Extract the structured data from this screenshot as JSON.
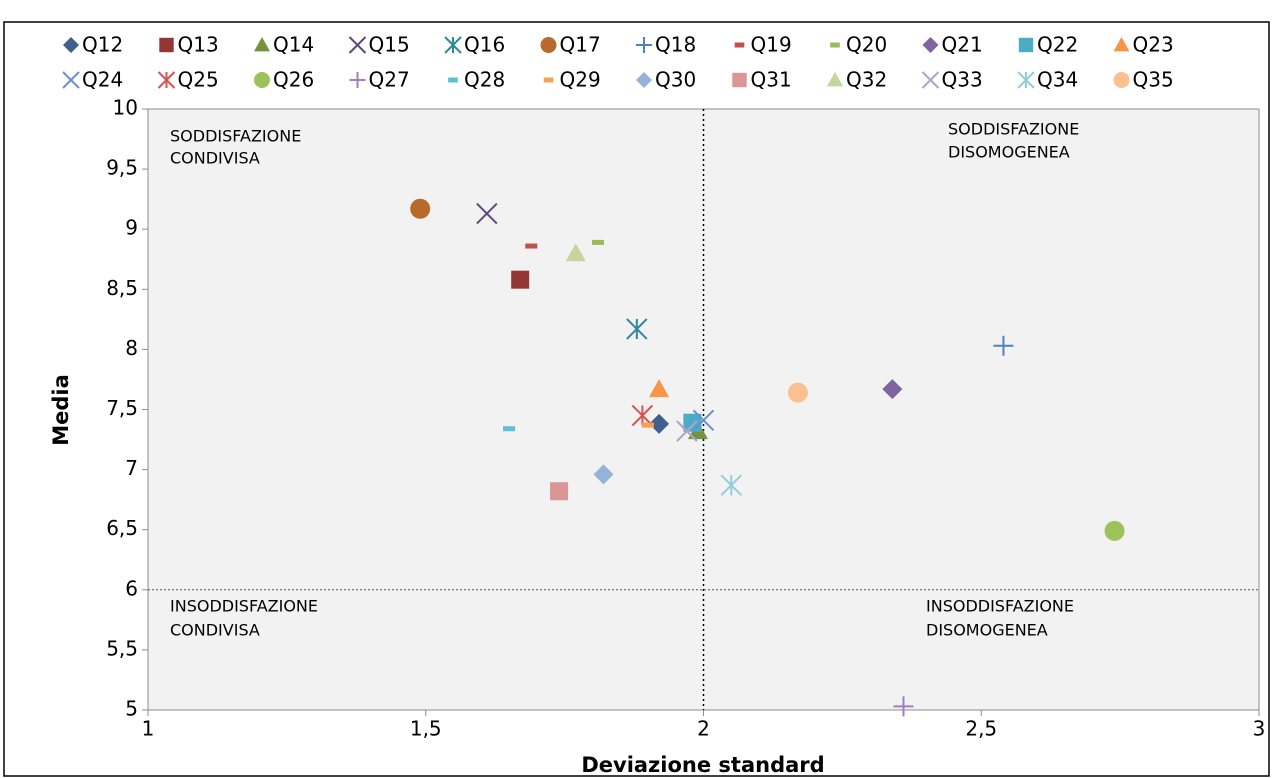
{
  "chart_data": {
    "type": "scatter",
    "x_label": "Deviazione standard",
    "y_label": "Media",
    "xlim": [
      1,
      3
    ],
    "ylim": [
      5,
      10
    ],
    "xticks": [
      1,
      {
        "value": 1.5,
        "label": "1,5"
      },
      2,
      {
        "value": 2.5,
        "label": "2,5"
      },
      3
    ],
    "yticks": [
      5,
      {
        "value": 5.5,
        "label": "5,5"
      },
      6,
      {
        "value": 6.5,
        "label": "6,5"
      },
      7,
      {
        "value": 7.5,
        "label": "7,5"
      },
      8,
      {
        "value": 8.5,
        "label": "8,5"
      },
      9,
      {
        "value": 9.5,
        "label": "9,5"
      },
      10
    ],
    "reference_lines": {
      "x": 2,
      "y": 6
    },
    "annotations": [
      {
        "lines": [
          "SODDISFAZIONE",
          "CONDIVISA"
        ]
      },
      {
        "lines": [
          "SODDISFAZIONE",
          "DISOMOGENEA"
        ]
      },
      {
        "lines": [
          "INSODDISFAZIONE",
          "CONDIVISA"
        ]
      },
      {
        "lines": [
          "INSODDISFAZIONE",
          "DISOMOGENEA"
        ]
      }
    ],
    "legend": "top",
    "series": [
      {
        "name": "Q12",
        "color": "#3f5f8f",
        "marker": "diamond",
        "x": [
          1.92
        ],
        "values": [
          7.38
        ]
      },
      {
        "name": "Q13",
        "color": "#943634",
        "marker": "square",
        "x": [
          1.67
        ],
        "values": [
          8.58
        ]
      },
      {
        "name": "Q14",
        "color": "#76923c",
        "marker": "triangle",
        "x": [
          1.99
        ],
        "values": [
          7.32
        ]
      },
      {
        "name": "Q15",
        "color": "#5f497a",
        "marker": "x",
        "x": [
          1.61
        ],
        "values": [
          9.13
        ]
      },
      {
        "name": "Q16",
        "color": "#31859c",
        "marker": "asterisk",
        "x": [
          1.88
        ],
        "values": [
          8.17
        ]
      },
      {
        "name": "Q17",
        "color": "#b8692c",
        "marker": "circle",
        "x": [
          1.49
        ],
        "values": [
          9.17
        ]
      },
      {
        "name": "Q18",
        "color": "#4f81bd",
        "marker": "plus",
        "x": [
          2.54
        ],
        "values": [
          8.03
        ]
      },
      {
        "name": "Q19",
        "color": "#c0504d",
        "marker": "dash",
        "x": [
          1.69
        ],
        "values": [
          8.86
        ]
      },
      {
        "name": "Q20",
        "color": "#9bbb59",
        "marker": "dash",
        "x": [
          1.81
        ],
        "values": [
          8.89
        ]
      },
      {
        "name": "Q21",
        "color": "#8064a2",
        "marker": "diamond",
        "x": [
          2.34
        ],
        "values": [
          7.67
        ]
      },
      {
        "name": "Q22",
        "color": "#4bacc6",
        "marker": "square",
        "x": [
          1.98
        ],
        "values": [
          7.39
        ]
      },
      {
        "name": "Q23",
        "color": "#f79646",
        "marker": "triangle",
        "x": [
          1.92
        ],
        "values": [
          7.67
        ]
      },
      {
        "name": "Q24",
        "color": "#6a8fd0",
        "marker": "x",
        "x": [
          2.0
        ],
        "values": [
          7.41
        ]
      },
      {
        "name": "Q25",
        "color": "#d9534f",
        "marker": "asterisk",
        "x": [
          1.89
        ],
        "values": [
          7.45
        ]
      },
      {
        "name": "Q26",
        "color": "#9bc35a",
        "marker": "circle",
        "x": [
          2.74
        ],
        "values": [
          6.49
        ]
      },
      {
        "name": "Q27",
        "color": "#9e7ec0",
        "marker": "plus",
        "x": [
          2.36
        ],
        "values": [
          5.03
        ]
      },
      {
        "name": "Q28",
        "color": "#5cc0d8",
        "marker": "dash",
        "x": [
          1.65
        ],
        "values": [
          7.34
        ]
      },
      {
        "name": "Q29",
        "color": "#f9a050",
        "marker": "dash",
        "x": [
          1.9
        ],
        "values": [
          7.37
        ]
      },
      {
        "name": "Q30",
        "color": "#95b3d7",
        "marker": "diamond",
        "x": [
          1.82
        ],
        "values": [
          6.96
        ]
      },
      {
        "name": "Q31",
        "color": "#d99694",
        "marker": "square",
        "x": [
          1.74
        ],
        "values": [
          6.82
        ]
      },
      {
        "name": "Q32",
        "color": "#c3d69b",
        "marker": "triangle",
        "x": [
          1.77
        ],
        "values": [
          8.8
        ]
      },
      {
        "name": "Q33",
        "color": "#b2a2c7",
        "marker": "x",
        "x": [
          1.97
        ],
        "values": [
          7.32
        ]
      },
      {
        "name": "Q34",
        "color": "#93cddd",
        "marker": "asterisk",
        "x": [
          2.05
        ],
        "values": [
          6.87
        ]
      },
      {
        "name": "Q35",
        "color": "#fac090",
        "marker": "circle",
        "x": [
          2.17
        ],
        "values": [
          7.64
        ]
      }
    ]
  }
}
